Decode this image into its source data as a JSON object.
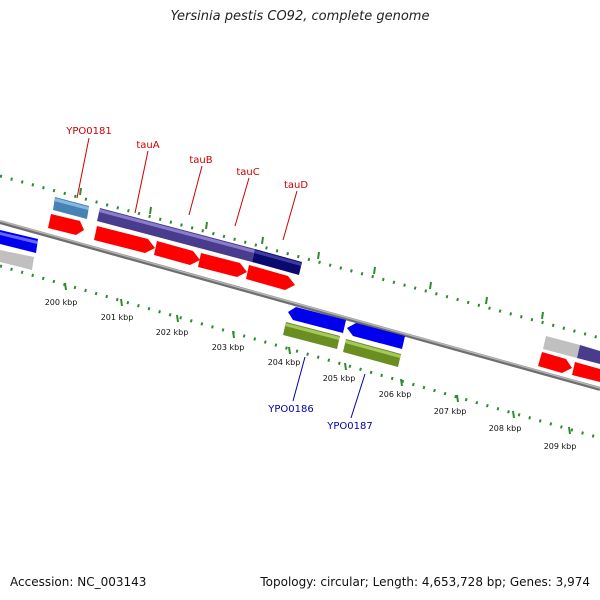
{
  "header": {
    "title": "Yersinia pestis CO92, complete genome"
  },
  "footer": {
    "accession": "Accession: NC_003143",
    "summary": "Topology: circular; Length: 4,653,728 bp; Genes: 3,974"
  },
  "colors": {
    "backbone": "#8c8c8c",
    "tick": "#2e8b2e",
    "cds_forward": "#ff0000",
    "cds_reverse": "#0000ee",
    "label_top": "#cc0000",
    "label_bottom": "#0000aa",
    "feature_purple": "#4a3c8c",
    "feature_navy": "#0a0a6e",
    "feature_steel": "#4682b4",
    "feature_olive": "#6b8e23",
    "feature_gray": "#c0c0c0"
  },
  "scale_labels": [
    "200 kbp",
    "201 kbp",
    "202 kbp",
    "203 kbp",
    "204 kbp",
    "205 kbp",
    "206 kbp",
    "207 kbp",
    "208 kbp",
    "209 kbp"
  ],
  "gene_labels": {
    "top": [
      "YPO0181",
      "tauA",
      "tauB",
      "tauC",
      "tauD"
    ],
    "bottom": [
      "YPO0186",
      "YPO0187"
    ]
  }
}
